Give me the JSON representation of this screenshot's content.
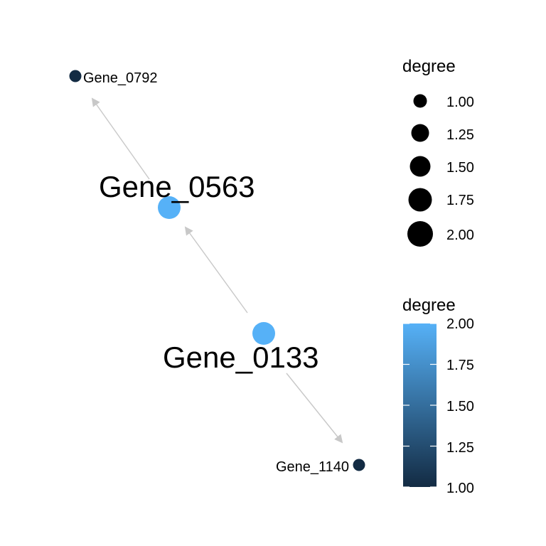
{
  "network": {
    "edge_color": "#c8c8c8",
    "nodes": [
      {
        "id": "Gene_0792",
        "label": "Gene_0792",
        "degree": 1,
        "color": "#132b43"
      },
      {
        "id": "Gene_0563",
        "label": "Gene_0563",
        "degree": 2,
        "color": "#56b1f7"
      },
      {
        "id": "Gene_0133",
        "label": "Gene_0133",
        "degree": 2,
        "color": "#56b1f7"
      },
      {
        "id": "Gene_1140",
        "label": "Gene_1140",
        "degree": 1,
        "color": "#132b43"
      }
    ],
    "edges": [
      {
        "from": "Gene_0563",
        "to": "Gene_0792"
      },
      {
        "from": "Gene_0133",
        "to": "Gene_0563"
      },
      {
        "from": "Gene_0133",
        "to": "Gene_1140"
      }
    ]
  },
  "legend_size": {
    "title": "degree",
    "entries": [
      {
        "value": 1.0,
        "label": "1.00"
      },
      {
        "value": 1.25,
        "label": "1.25"
      },
      {
        "value": 1.5,
        "label": "1.50"
      },
      {
        "value": 1.75,
        "label": "1.75"
      },
      {
        "value": 2.0,
        "label": "2.00"
      }
    ]
  },
  "legend_color": {
    "title": "degree",
    "low_color": "#132b43",
    "high_color": "#56b1f7",
    "range": [
      1.0,
      2.0
    ],
    "ticks": [
      {
        "value": 2.0,
        "label": "2.00"
      },
      {
        "value": 1.75,
        "label": "1.75"
      },
      {
        "value": 1.5,
        "label": "1.50"
      },
      {
        "value": 1.25,
        "label": "1.25"
      },
      {
        "value": 1.0,
        "label": "1.00"
      }
    ]
  }
}
